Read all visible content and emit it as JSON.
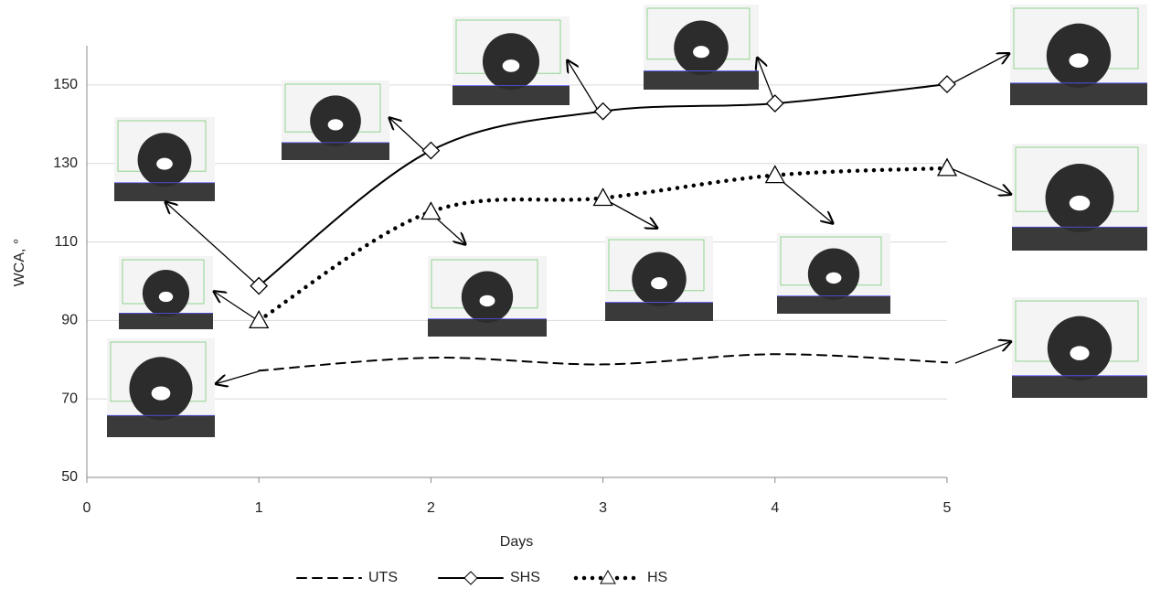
{
  "chart_data": {
    "type": "line",
    "x_label": "Days",
    "y_label": "WCA, °",
    "x": [
      1,
      2,
      3,
      4,
      5
    ],
    "series": [
      {
        "name": "UTS",
        "color": "#000000",
        "dash": "dashed",
        "marker": "none",
        "values": [
          77.2,
          80.5,
          78.8,
          81.4,
          79.3
        ]
      },
      {
        "name": "SHS",
        "color": "#000000",
        "dash": "solid",
        "marker": "diamond",
        "values": [
          98.8,
          133.3,
          143.3,
          145.3,
          150.2
        ]
      },
      {
        "name": "HS",
        "color": "#000000",
        "dash": "dotted",
        "marker": "triangle",
        "values": [
          90,
          117.7,
          121.2,
          127,
          128.8
        ]
      }
    ],
    "xlim": [
      0,
      5
    ],
    "xticks": [
      0,
      1,
      2,
      3,
      4,
      5
    ],
    "ylim": [
      50,
      160
    ],
    "yticks": [
      50,
      70,
      90,
      110,
      130,
      150
    ],
    "grid": true,
    "legend": "bottom"
  }
}
